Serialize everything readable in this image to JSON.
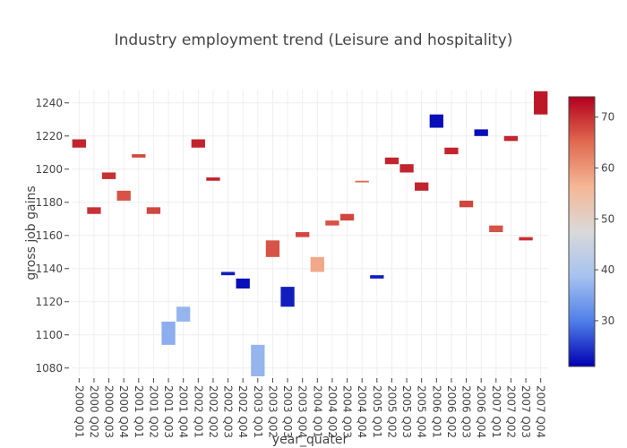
{
  "chart_data": {
    "type": "waterfall-heatmap",
    "title": "Industry employment trend (Leisure and hospitality)",
    "xlabel": "year_quater",
    "ylabel": "gross job gains",
    "ylim": [
      1075,
      1248
    ],
    "yticks": [
      1080,
      1100,
      1120,
      1140,
      1160,
      1180,
      1200,
      1220,
      1240
    ],
    "colorbar": {
      "range": [
        21,
        74
      ],
      "ticks": [
        30,
        40,
        50,
        60,
        70
      ]
    },
    "colorscale": [
      "#0000b2",
      "#4f7ee8",
      "#a6c2f0",
      "#d9d9d9",
      "#f5b795",
      "#e0694f",
      "#b2001d"
    ],
    "categories": [
      "2000 Q01",
      "2000 Q02",
      "2000 Q03",
      "2000 Q04",
      "2001 Q01",
      "2001 Q02",
      "2001 Q03",
      "2001 Q04",
      "2002 Q01",
      "2002 Q02",
      "2002 Q03",
      "2002 Q04",
      "2003 Q01",
      "2003 Q02",
      "2003 Q03",
      "2003 Q04",
      "2004 Q01",
      "2004 Q02",
      "2004 Q03",
      "2004 Q04",
      "2005 Q01",
      "2005 Q02",
      "2005 Q03",
      "2005 Q04",
      "2006 Q01",
      "2006 Q02",
      "2006 Q03",
      "2006 Q04",
      "2007 Q01",
      "2007 Q02",
      "2007 Q03",
      "2007 Q04"
    ],
    "bars": [
      {
        "low": 1213,
        "high": 1218,
        "value": 71
      },
      {
        "low": 1173,
        "high": 1177,
        "value": 70
      },
      {
        "low": 1194,
        "high": 1198,
        "value": 70
      },
      {
        "low": 1181,
        "high": 1187,
        "value": 67
      },
      {
        "low": 1207,
        "high": 1209,
        "value": 68
      },
      {
        "low": 1173,
        "high": 1177,
        "value": 68
      },
      {
        "low": 1094,
        "high": 1108,
        "value": 36
      },
      {
        "low": 1108,
        "high": 1117,
        "value": 37
      },
      {
        "low": 1213,
        "high": 1218,
        "value": 71
      },
      {
        "low": 1193,
        "high": 1195,
        "value": 71
      },
      {
        "low": 1136,
        "high": 1138,
        "value": 23
      },
      {
        "low": 1128,
        "high": 1134,
        "value": 22
      },
      {
        "low": 1075,
        "high": 1094,
        "value": 37
      },
      {
        "low": 1147,
        "high": 1157,
        "value": 67
      },
      {
        "low": 1117,
        "high": 1129,
        "value": 23
      },
      {
        "low": 1159,
        "high": 1162,
        "value": 68
      },
      {
        "low": 1138,
        "high": 1147,
        "value": 58
      },
      {
        "low": 1166,
        "high": 1169,
        "value": 67
      },
      {
        "low": 1169,
        "high": 1173,
        "value": 68
      },
      {
        "low": 1192,
        "high": 1193,
        "value": 65
      },
      {
        "low": 1134,
        "high": 1136,
        "value": 23
      },
      {
        "low": 1203,
        "high": 1207,
        "value": 71
      },
      {
        "low": 1198,
        "high": 1203,
        "value": 71
      },
      {
        "low": 1187,
        "high": 1192,
        "value": 71
      },
      {
        "low": 1225,
        "high": 1233,
        "value": 22
      },
      {
        "low": 1209,
        "high": 1213,
        "value": 71
      },
      {
        "low": 1177,
        "high": 1181,
        "value": 68
      },
      {
        "low": 1220,
        "high": 1224,
        "value": 22
      },
      {
        "low": 1162,
        "high": 1166,
        "value": 67
      },
      {
        "low": 1217,
        "high": 1220,
        "value": 71
      },
      {
        "low": 1157,
        "high": 1159,
        "value": 70
      },
      {
        "low": 1233,
        "high": 1247,
        "value": 72
      }
    ]
  }
}
